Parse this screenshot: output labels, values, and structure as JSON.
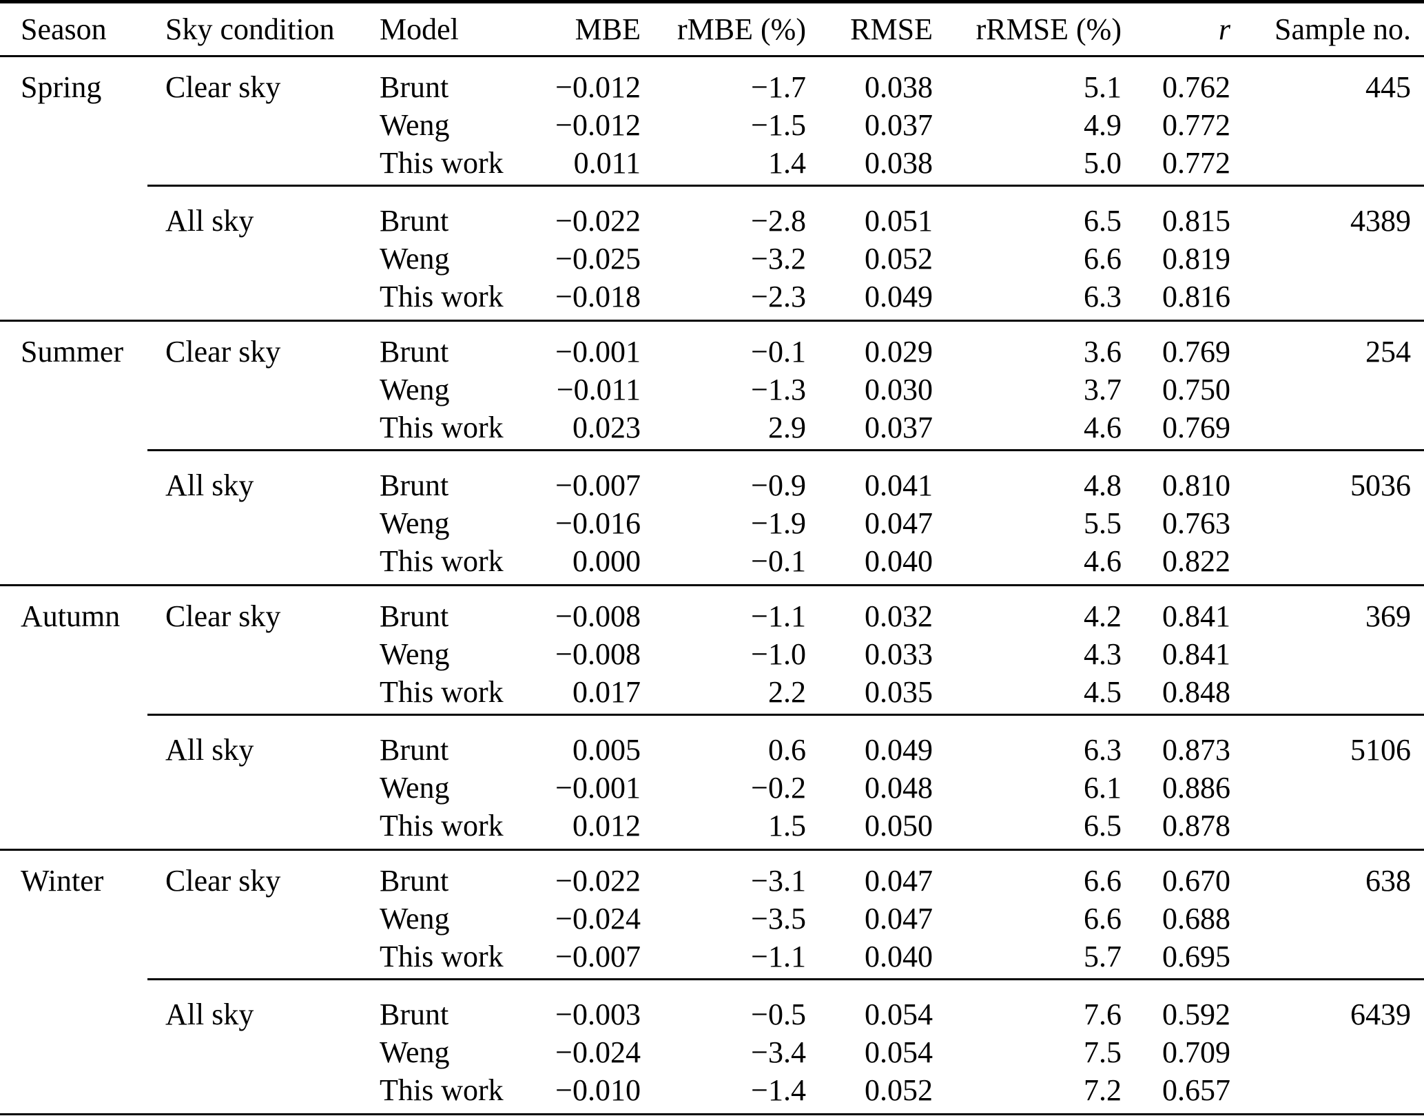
{
  "table": {
    "columns": [
      "Season",
      "Sky condition",
      "Model",
      "MBE",
      "rMBE (%)",
      "RMSE",
      "rRMSE (%)",
      "r",
      "Sample no."
    ],
    "sections": [
      {
        "season": "Spring",
        "groups": [
          {
            "sky": "Clear sky",
            "sample": "445",
            "rows": [
              {
                "model": "Brunt",
                "mbe": "−0.012",
                "rmbe": "−1.7",
                "rmse": "0.038",
                "rrmse": "5.1",
                "r": "0.762"
              },
              {
                "model": "Weng",
                "mbe": "−0.012",
                "rmbe": "−1.5",
                "rmse": "0.037",
                "rrmse": "4.9",
                "r": "0.772"
              },
              {
                "model": "This work",
                "mbe": "0.011",
                "rmbe": "1.4",
                "rmse": "0.038",
                "rrmse": "5.0",
                "r": "0.772"
              }
            ]
          },
          {
            "sky": "All sky",
            "sample": "4389",
            "rows": [
              {
                "model": "Brunt",
                "mbe": "−0.022",
                "rmbe": "−2.8",
                "rmse": "0.051",
                "rrmse": "6.5",
                "r": "0.815"
              },
              {
                "model": "Weng",
                "mbe": "−0.025",
                "rmbe": "−3.2",
                "rmse": "0.052",
                "rrmse": "6.6",
                "r": "0.819"
              },
              {
                "model": "This work",
                "mbe": "−0.018",
                "rmbe": "−2.3",
                "rmse": "0.049",
                "rrmse": "6.3",
                "r": "0.816"
              }
            ]
          }
        ]
      },
      {
        "season": "Summer",
        "groups": [
          {
            "sky": "Clear sky",
            "sample": "254",
            "rows": [
              {
                "model": "Brunt",
                "mbe": "−0.001",
                "rmbe": "−0.1",
                "rmse": "0.029",
                "rrmse": "3.6",
                "r": "0.769"
              },
              {
                "model": "Weng",
                "mbe": "−0.011",
                "rmbe": "−1.3",
                "rmse": "0.030",
                "rrmse": "3.7",
                "r": "0.750"
              },
              {
                "model": "This work",
                "mbe": "0.023",
                "rmbe": "2.9",
                "rmse": "0.037",
                "rrmse": "4.6",
                "r": "0.769"
              }
            ]
          },
          {
            "sky": "All sky",
            "sample": "5036",
            "rows": [
              {
                "model": "Brunt",
                "mbe": "−0.007",
                "rmbe": "−0.9",
                "rmse": "0.041",
                "rrmse": "4.8",
                "r": "0.810"
              },
              {
                "model": "Weng",
                "mbe": "−0.016",
                "rmbe": "−1.9",
                "rmse": "0.047",
                "rrmse": "5.5",
                "r": "0.763"
              },
              {
                "model": "This work",
                "mbe": "0.000",
                "rmbe": "−0.1",
                "rmse": "0.040",
                "rrmse": "4.6",
                "r": "0.822"
              }
            ]
          }
        ]
      },
      {
        "season": "Autumn",
        "groups": [
          {
            "sky": "Clear sky",
            "sample": "369",
            "rows": [
              {
                "model": "Brunt",
                "mbe": "−0.008",
                "rmbe": "−1.1",
                "rmse": "0.032",
                "rrmse": "4.2",
                "r": "0.841"
              },
              {
                "model": "Weng",
                "mbe": "−0.008",
                "rmbe": "−1.0",
                "rmse": "0.033",
                "rrmse": "4.3",
                "r": "0.841"
              },
              {
                "model": "This work",
                "mbe": "0.017",
                "rmbe": "2.2",
                "rmse": "0.035",
                "rrmse": "4.5",
                "r": "0.848"
              }
            ]
          },
          {
            "sky": "All sky",
            "sample": "5106",
            "rows": [
              {
                "model": "Brunt",
                "mbe": "0.005",
                "rmbe": "0.6",
                "rmse": "0.049",
                "rrmse": "6.3",
                "r": "0.873"
              },
              {
                "model": "Weng",
                "mbe": "−0.001",
                "rmbe": "−0.2",
                "rmse": "0.048",
                "rrmse": "6.1",
                "r": "0.886"
              },
              {
                "model": "This work",
                "mbe": "0.012",
                "rmbe": "1.5",
                "rmse": "0.050",
                "rrmse": "6.5",
                "r": "0.878"
              }
            ]
          }
        ]
      },
      {
        "season": "Winter",
        "groups": [
          {
            "sky": "Clear sky",
            "sample": "638",
            "rows": [
              {
                "model": "Brunt",
                "mbe": "−0.022",
                "rmbe": "−3.1",
                "rmse": "0.047",
                "rrmse": "6.6",
                "r": "0.670"
              },
              {
                "model": "Weng",
                "mbe": "−0.024",
                "rmbe": "−3.5",
                "rmse": "0.047",
                "rrmse": "6.6",
                "r": "0.688"
              },
              {
                "model": "This work",
                "mbe": "−0.007",
                "rmbe": "−1.1",
                "rmse": "0.040",
                "rrmse": "5.7",
                "r": "0.695"
              }
            ]
          },
          {
            "sky": "All sky",
            "sample": "6439",
            "rows": [
              {
                "model": "Brunt",
                "mbe": "−0.003",
                "rmbe": "−0.5",
                "rmse": "0.054",
                "rrmse": "7.6",
                "r": "0.592"
              },
              {
                "model": "Weng",
                "mbe": "−0.024",
                "rmbe": "−3.4",
                "rmse": "0.054",
                "rrmse": "7.5",
                "r": "0.709"
              },
              {
                "model": "This work",
                "mbe": "−0.010",
                "rmbe": "−1.4",
                "rmse": "0.052",
                "rrmse": "7.2",
                "r": "0.657"
              }
            ]
          }
        ]
      }
    ]
  }
}
